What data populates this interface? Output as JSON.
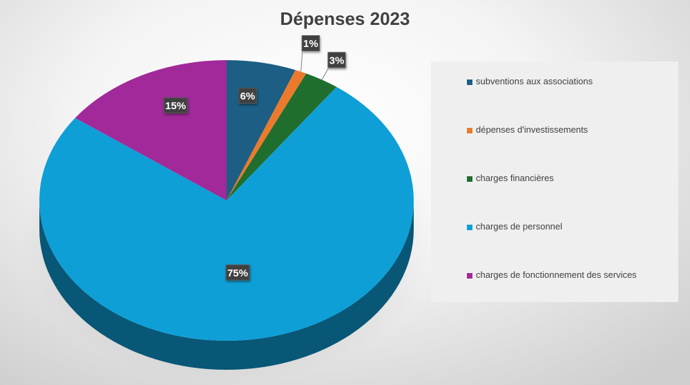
{
  "chart_data": {
    "type": "pie",
    "title": "Dépenses 2023",
    "categories": [
      "subventions aux associations",
      "dépenses d'investissements",
      "charges financières",
      "charges de personnel",
      "charges de fonctionnement des services"
    ],
    "values": [
      6,
      1,
      3,
      75,
      15
    ],
    "data_labels": [
      "6%",
      "1%",
      "3%",
      "75%",
      "15%"
    ],
    "colors": [
      "#1d5e84",
      "#ec7a2c",
      "#1f6e2d",
      "#0f9fd7",
      "#a1299a"
    ],
    "style": "3d",
    "legend_position": "right"
  }
}
